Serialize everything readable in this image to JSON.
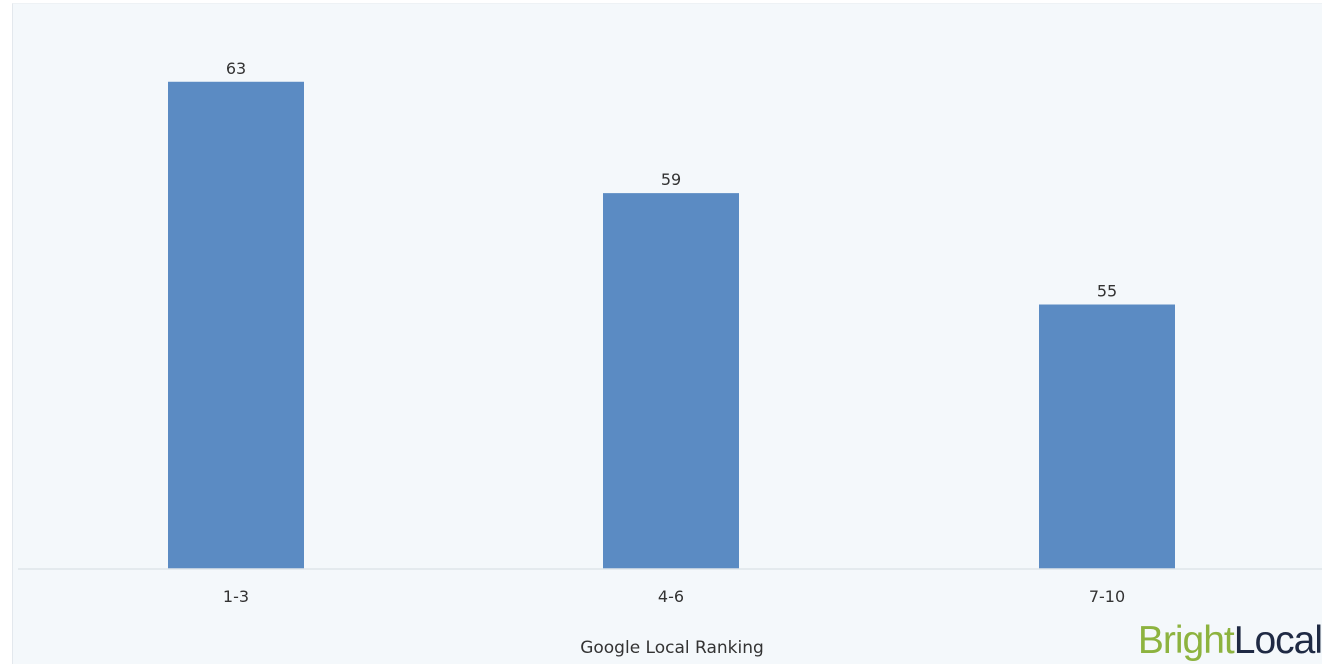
{
  "chart_data": {
    "type": "bar",
    "categories": [
      "1-3",
      "4-6",
      "7-10"
    ],
    "values": [
      63,
      59,
      55
    ],
    "xlabel": "Google Local Ranking",
    "ylabel": "",
    "ylim": [
      45.5,
      64.5
    ],
    "grid": false,
    "bar_color": "#5b8bc3",
    "data_labels": true
  },
  "logo": {
    "part1": "Bright",
    "part2": "Local",
    "part1_color": "#8db33f",
    "part2_color": "#1f2a44"
  },
  "colors": {
    "background": "#f4f8fb",
    "axis_line": "#dfe5ea"
  }
}
